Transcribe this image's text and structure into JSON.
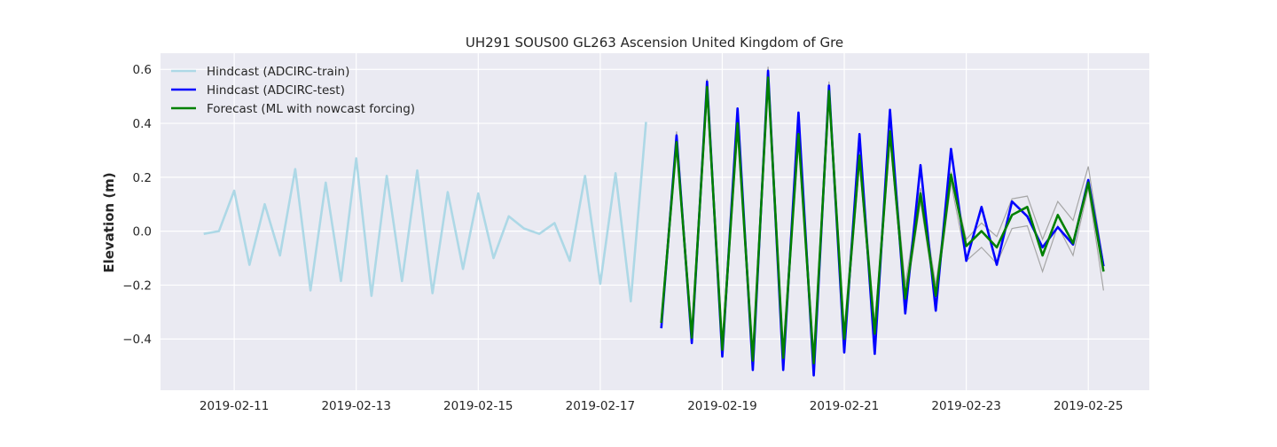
{
  "chart_data": {
    "type": "line",
    "title": "UH291 SOUS00 GL263 Ascension United Kingdom of Gre",
    "xlabel": "",
    "ylabel": "Elevation (m)",
    "x_ticks": [
      "2019-02-11",
      "2019-02-13",
      "2019-02-15",
      "2019-02-17",
      "2019-02-19",
      "2019-02-21",
      "2019-02-23",
      "2019-02-25"
    ],
    "y_ticks": [
      "−0.4",
      "−0.2",
      "0.0",
      "0.2",
      "0.4",
      "0.6"
    ],
    "y_tick_values": [
      -0.4,
      -0.2,
      0.0,
      0.2,
      0.4,
      0.6
    ],
    "xlim": [
      "2019-02-09T19:00",
      "2019-02-26T00:00"
    ],
    "ylim": [
      -0.59,
      0.66
    ],
    "grid": true,
    "legend_position": "top-left",
    "colors": {
      "background": "#eaeaf2",
      "train": "#add8e6",
      "test": "#0000ff",
      "forecast": "#008000",
      "ensemble": "#a6a6a6"
    },
    "series": [
      {
        "name": "Hindcast (ADCIRC-train)",
        "color": "#add8e6",
        "x": [
          "2019-02-10T12:00",
          "2019-02-10T18:00",
          "2019-02-11T00:00",
          "2019-02-11T06:00",
          "2019-02-11T12:00",
          "2019-02-11T18:00",
          "2019-02-12T00:00",
          "2019-02-12T06:00",
          "2019-02-12T12:00",
          "2019-02-12T18:00",
          "2019-02-13T00:00",
          "2019-02-13T06:00",
          "2019-02-13T12:00",
          "2019-02-13T18:00",
          "2019-02-14T00:00",
          "2019-02-14T06:00",
          "2019-02-14T12:00",
          "2019-02-14T18:00",
          "2019-02-15T00:00",
          "2019-02-15T06:00",
          "2019-02-15T12:00",
          "2019-02-15T18:00",
          "2019-02-16T00:00",
          "2019-02-16T06:00",
          "2019-02-16T12:00",
          "2019-02-16T18:00",
          "2019-02-17T00:00",
          "2019-02-17T06:00",
          "2019-02-17T12:00",
          "2019-02-17T18:00"
        ],
        "y": [
          -0.01,
          0.0,
          0.15,
          -0.125,
          0.1,
          -0.09,
          0.23,
          -0.22,
          0.18,
          -0.185,
          0.27,
          -0.24,
          0.205,
          -0.185,
          0.225,
          -0.23,
          0.145,
          -0.14,
          0.14,
          -0.1,
          0.055,
          0.01,
          -0.01,
          0.03,
          -0.11,
          0.205,
          -0.195,
          0.215,
          -0.26,
          0.405
        ]
      },
      {
        "name": "Hindcast (ADCIRC-test)",
        "color": "#0000ff",
        "x": [
          "2019-02-18T00:00",
          "2019-02-18T06:00",
          "2019-02-18T12:00",
          "2019-02-18T18:00",
          "2019-02-19T00:00",
          "2019-02-19T06:00",
          "2019-02-19T12:00",
          "2019-02-19T18:00",
          "2019-02-20T00:00",
          "2019-02-20T06:00",
          "2019-02-20T12:00",
          "2019-02-20T18:00",
          "2019-02-21T00:00",
          "2019-02-21T06:00",
          "2019-02-21T12:00",
          "2019-02-21T18:00",
          "2019-02-22T00:00",
          "2019-02-22T06:00",
          "2019-02-22T12:00",
          "2019-02-22T18:00",
          "2019-02-23T00:00",
          "2019-02-23T06:00",
          "2019-02-23T12:00",
          "2019-02-23T18:00",
          "2019-02-24T00:00",
          "2019-02-24T06:00",
          "2019-02-24T12:00",
          "2019-02-24T18:00",
          "2019-02-25T00:00",
          "2019-02-25T06:00"
        ],
        "y": [
          -0.36,
          0.355,
          -0.415,
          0.555,
          -0.465,
          0.455,
          -0.515,
          0.595,
          -0.515,
          0.44,
          -0.535,
          0.54,
          -0.45,
          0.36,
          -0.455,
          0.45,
          -0.305,
          0.245,
          -0.295,
          0.305,
          -0.11,
          0.09,
          -0.125,
          0.11,
          0.055,
          -0.06,
          0.015,
          -0.05,
          0.19,
          -0.13
        ]
      },
      {
        "name": "Forecast (ML with nowcast forcing)",
        "color": "#008000",
        "x": [
          "2019-02-18T00:00",
          "2019-02-18T06:00",
          "2019-02-18T12:00",
          "2019-02-18T18:00",
          "2019-02-19T00:00",
          "2019-02-19T06:00",
          "2019-02-19T12:00",
          "2019-02-19T18:00",
          "2019-02-20T00:00",
          "2019-02-20T06:00",
          "2019-02-20T12:00",
          "2019-02-20T18:00",
          "2019-02-21T00:00",
          "2019-02-21T06:00",
          "2019-02-21T12:00",
          "2019-02-21T18:00",
          "2019-02-22T00:00",
          "2019-02-22T06:00",
          "2019-02-22T12:00",
          "2019-02-22T18:00",
          "2019-02-23T00:00",
          "2019-02-23T06:00",
          "2019-02-23T12:00",
          "2019-02-23T18:00",
          "2019-02-24T00:00",
          "2019-02-24T06:00",
          "2019-02-24T12:00",
          "2019-02-24T18:00",
          "2019-02-25T00:00",
          "2019-02-25T06:00"
        ],
        "y": [
          -0.34,
          0.33,
          -0.395,
          0.535,
          -0.44,
          0.4,
          -0.48,
          0.57,
          -0.47,
          0.36,
          -0.49,
          0.52,
          -0.4,
          0.28,
          -0.38,
          0.37,
          -0.25,
          0.14,
          -0.24,
          0.21,
          -0.055,
          0.0,
          -0.06,
          0.06,
          0.09,
          -0.09,
          0.06,
          -0.045,
          0.18,
          -0.15
        ]
      }
    ],
    "ensemble_band": {
      "color": "#a6a6a6",
      "x": [
        "2019-02-18T00:00",
        "2019-02-18T06:00",
        "2019-02-18T12:00",
        "2019-02-18T18:00",
        "2019-02-19T00:00",
        "2019-02-19T06:00",
        "2019-02-19T12:00",
        "2019-02-19T18:00",
        "2019-02-20T00:00",
        "2019-02-20T06:00",
        "2019-02-20T12:00",
        "2019-02-20T18:00",
        "2019-02-21T00:00",
        "2019-02-21T06:00",
        "2019-02-21T12:00",
        "2019-02-21T18:00",
        "2019-02-22T00:00",
        "2019-02-22T06:00",
        "2019-02-22T12:00",
        "2019-02-22T18:00",
        "2019-02-23T00:00",
        "2019-02-23T06:00",
        "2019-02-23T12:00",
        "2019-02-23T18:00",
        "2019-02-24T00:00",
        "2019-02-24T06:00",
        "2019-02-24T12:00",
        "2019-02-24T18:00",
        "2019-02-25T00:00",
        "2019-02-25T06:00"
      ],
      "upper": [
        -0.32,
        0.37,
        -0.37,
        0.565,
        -0.41,
        0.43,
        -0.45,
        0.61,
        -0.44,
        0.42,
        -0.46,
        0.555,
        -0.37,
        0.33,
        -0.35,
        0.41,
        -0.2,
        0.16,
        -0.2,
        0.22,
        -0.03,
        0.03,
        -0.02,
        0.12,
        0.13,
        -0.03,
        0.11,
        0.04,
        0.24,
        -0.12
      ],
      "lower": [
        -0.36,
        0.31,
        -0.41,
        0.5,
        -0.47,
        0.37,
        -0.5,
        0.55,
        -0.5,
        0.34,
        -0.52,
        0.49,
        -0.43,
        0.25,
        -0.4,
        0.34,
        -0.27,
        0.11,
        -0.26,
        0.18,
        -0.11,
        -0.06,
        -0.12,
        0.01,
        0.02,
        -0.15,
        0.02,
        -0.09,
        0.16,
        -0.22
      ]
    }
  }
}
